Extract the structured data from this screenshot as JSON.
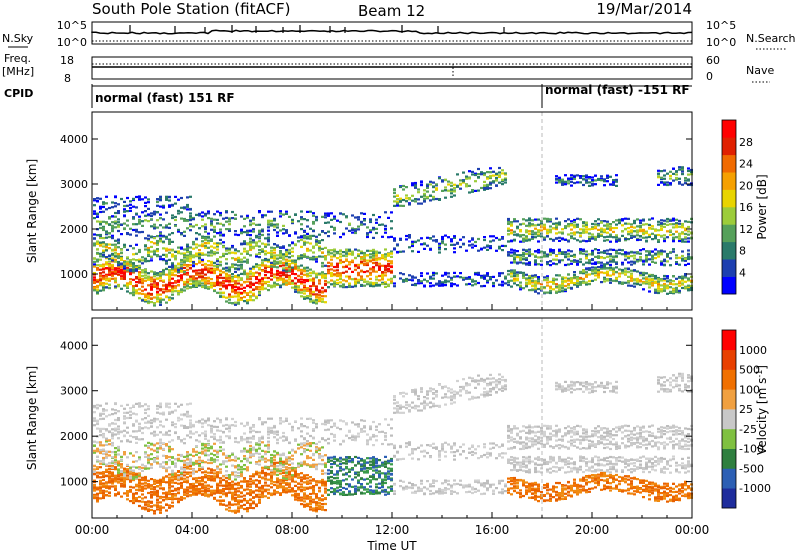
{
  "header": {
    "title": "South Pole Station (fitACF)",
    "beam": "Beam 12",
    "date": "19/Mar/2014"
  },
  "left_labels": {
    "nsky": "N.Sky",
    "freq": "Freq.",
    "freq_unit": "[MHz]",
    "cpid": "CPID"
  },
  "right_labels": {
    "nsearch": "N.Search",
    "nave": "Nave"
  },
  "noise_panel": {
    "left_ticks": [
      "10^5",
      "10^0"
    ],
    "right_ticks": [
      "10^5",
      "10^0"
    ]
  },
  "freq_panel": {
    "left_ticks": [
      "18",
      "8"
    ],
    "right_ticks": [
      "60",
      "0"
    ]
  },
  "cpid_panel": {
    "segments": [
      {
        "label": "normal (fast) 151 RF",
        "start_hour": 0,
        "end_hour": 18
      },
      {
        "label": "normal (fast) -151 RF",
        "start_hour": 18,
        "end_hour": 24
      }
    ]
  },
  "chart_data": [
    {
      "type": "heatmap",
      "name": "power",
      "ylabel": "Slant Range [km]",
      "xlim": [
        0,
        24
      ],
      "ylim": [
        200,
        4600
      ],
      "yticks": [
        1000,
        2000,
        3000,
        4000
      ],
      "colorbar": {
        "label": "Power [dB]",
        "ticks": [
          "4",
          "8",
          "12",
          "16",
          "20",
          "24",
          "28"
        ],
        "colors": [
          "#0000ff",
          "#1d3fb0",
          "#2a7a6a",
          "#55a05a",
          "#9ccc3a",
          "#e8d400",
          "#f5a000",
          "#f06a00",
          "#e02000",
          "#ff0000"
        ]
      }
    },
    {
      "type": "heatmap",
      "name": "velocity",
      "ylabel": "Slant Range [km]",
      "xlabel": "Time UT",
      "xlim": [
        0,
        24
      ],
      "ylim": [
        200,
        4600
      ],
      "yticks": [
        1000,
        2000,
        3000,
        4000
      ],
      "xticks": [
        "00:00",
        "04:00",
        "08:00",
        "12:00",
        "16:00",
        "20:00",
        "00:00"
      ],
      "colorbar": {
        "label": "Velocity [m s^-1]",
        "ticks": [
          "1000",
          "500",
          "100",
          "25",
          "-25",
          "-100",
          "-500",
          "-1000"
        ],
        "colors": [
          "#1e2c9c",
          "#2c5fb4",
          "#2f7f3f",
          "#7fc040",
          "#c8c8c8",
          "#f0a040",
          "#f07000",
          "#e84000",
          "#ff0000"
        ]
      }
    }
  ]
}
